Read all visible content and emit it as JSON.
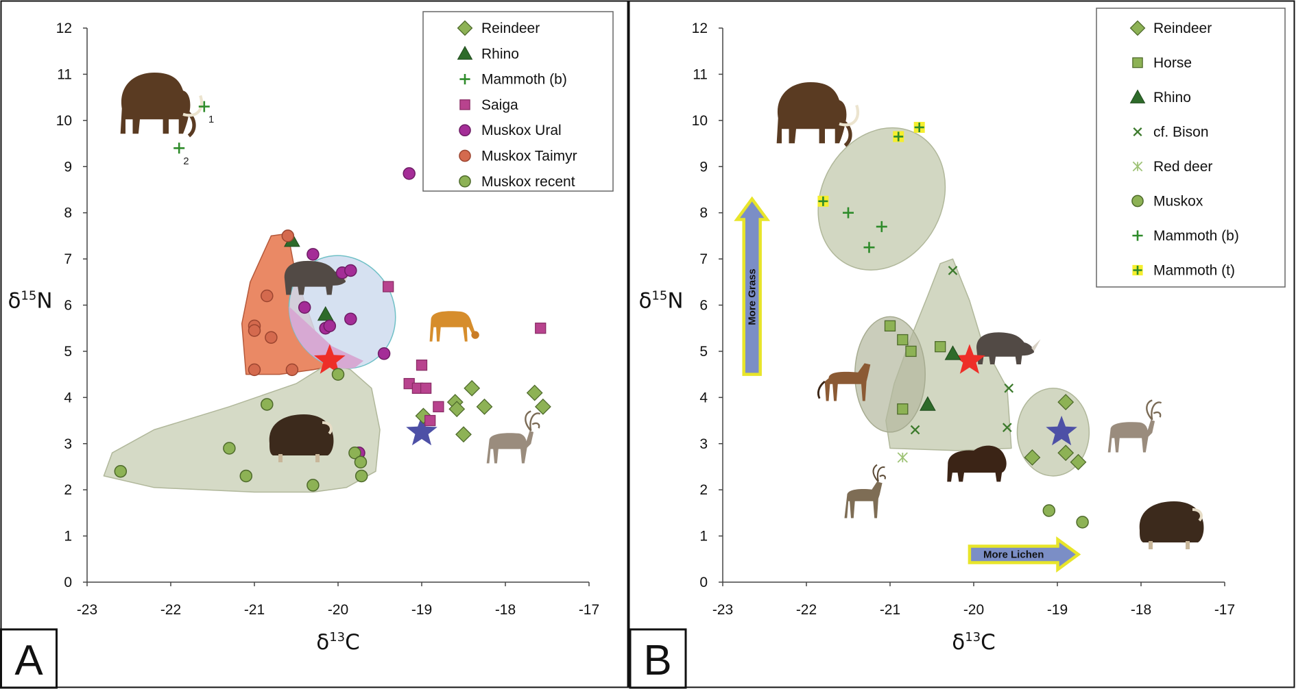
{
  "colors": {
    "reindeer": "#8DB255",
    "rhino": "#2E6B2A",
    "mammoth_b": "#2E8B2A",
    "saiga": "#B8438E",
    "muskox_ural": "#A42D97",
    "muskox_taimyr": "#D46A4E",
    "muskox_recent": "#8DB255",
    "horse": "#8DB255",
    "bison": "#3C7A2C",
    "red_deer": "#9EC276",
    "mammoth_t_bg": "#F5EE2E",
    "region_green": "#C7CDB3",
    "region_orange": "#E9835D",
    "region_blue": "#CFDCEE",
    "region_blue_stroke": "#6FC0C6",
    "region_pink": "#D7A9D3",
    "star_red": "#EE2E28",
    "star_blue": "#4D50A6",
    "arrow_fill": "#7B8EC6",
    "arrow_stroke": "#E8E52A"
  },
  "chart_data": [
    {
      "type": "scatter",
      "panel_label": "A",
      "xlabel": "δ13C",
      "ylabel": "δ15N",
      "xlim": [
        -23,
        -17
      ],
      "ylim": [
        0,
        12
      ],
      "x_ticks": [
        "-23",
        "-22",
        "-21",
        "-20",
        "-19",
        "-18",
        "-17"
      ],
      "y_ticks": [
        "0",
        "1",
        "2",
        "3",
        "4",
        "5",
        "6",
        "7",
        "8",
        "9",
        "10",
        "11",
        "12"
      ],
      "grid": false,
      "legend_placement": "top-right",
      "point_annotations": [
        {
          "text": "1",
          "x": -21.55,
          "y": 10.1
        },
        {
          "text": "2",
          "x": -21.85,
          "y": 9.2
        }
      ],
      "regions": [
        {
          "type": "muskox-taimyr-range",
          "points": [
            [
              -21.1,
              4.5
            ],
            [
              -20.7,
              4.5
            ],
            [
              -20.3,
              4.6
            ],
            [
              -20.0,
              4.7
            ],
            [
              -20.25,
              5.3
            ],
            [
              -20.5,
              6.6
            ],
            [
              -20.6,
              7.55
            ],
            [
              -20.8,
              7.5
            ],
            [
              -20.9,
              7.1
            ],
            [
              -21.05,
              6.5
            ],
            [
              -21.15,
              5.6
            ]
          ]
        },
        {
          "type": "muskox-ural-range",
          "ellipse": {
            "cx": -19.95,
            "cy": 5.85,
            "rx": 0.62,
            "ry": 1.25,
            "angle": -28
          }
        },
        {
          "type": "muskox-recent-range",
          "points": [
            [
              -22.8,
              2.3
            ],
            [
              -22.2,
              2.05
            ],
            [
              -21.0,
              1.95
            ],
            [
              -20.3,
              1.95
            ],
            [
              -19.9,
              2.05
            ],
            [
              -19.55,
              2.4
            ],
            [
              -19.5,
              3.3
            ],
            [
              -19.6,
              4.2
            ],
            [
              -19.85,
              4.6
            ],
            [
              -20.1,
              4.75
            ],
            [
              -20.5,
              4.3
            ],
            [
              -21.3,
              3.8
            ],
            [
              -22.2,
              3.3
            ],
            [
              -22.7,
              2.8
            ]
          ]
        }
      ],
      "stars": [
        {
          "name": "red",
          "x": -20.1,
          "y": 4.8
        },
        {
          "name": "blue",
          "x": -19.0,
          "y": 3.25
        }
      ],
      "series": [
        {
          "name": "Reindeer",
          "marker": "diamond",
          "x": [
            -18.6,
            -18.58,
            -18.4,
            -18.25,
            -18.5,
            -17.65,
            -17.55,
            -18.98
          ],
          "y": [
            3.9,
            3.75,
            4.2,
            3.8,
            3.2,
            4.1,
            3.8,
            3.6
          ]
        },
        {
          "name": "Rhino",
          "marker": "triangle",
          "x": [
            -20.55,
            -20.15
          ],
          "y": [
            7.4,
            5.8
          ]
        },
        {
          "name": "Mammoth (b)",
          "marker": "plus",
          "x": [
            -21.6,
            -21.9
          ],
          "y": [
            10.3,
            9.4
          ]
        },
        {
          "name": "Saiga",
          "marker": "square",
          "x": [
            -19.4,
            -19.0,
            -19.15,
            -19.05,
            -18.95,
            -18.8,
            -18.9,
            -17.58
          ],
          "y": [
            6.4,
            4.7,
            4.3,
            4.2,
            4.2,
            3.8,
            3.5,
            5.5
          ]
        },
        {
          "name": "Muskox Ural",
          "marker": "circle",
          "x": [
            -20.3,
            -19.95,
            -19.85,
            -19.85,
            -20.4,
            -20.15,
            -20.1,
            -19.45,
            -19.15,
            -19.75
          ],
          "y": [
            7.1,
            6.7,
            6.75,
            5.7,
            5.95,
            5.5,
            5.55,
            4.95,
            8.85,
            2.8
          ]
        },
        {
          "name": "Muskox Taimyr",
          "marker": "circle",
          "x": [
            -20.6,
            -20.85,
            -21.0,
            -21.0,
            -20.8,
            -21.0,
            -20.55
          ],
          "y": [
            7.5,
            6.2,
            5.55,
            5.45,
            5.3,
            4.6,
            4.6
          ]
        },
        {
          "name": "Muskox recent",
          "marker": "circle",
          "x": [
            -20.0,
            -20.85,
            -21.3,
            -22.6,
            -21.1,
            -20.3,
            -19.8,
            -19.73,
            -19.72
          ],
          "y": [
            4.5,
            3.85,
            2.9,
            2.4,
            2.3,
            2.1,
            2.8,
            2.6,
            2.3
          ]
        }
      ],
      "illustrations": [
        "mammoth",
        "woolly-rhino",
        "saiga",
        "muskox",
        "reindeer"
      ]
    },
    {
      "type": "scatter",
      "panel_label": "B",
      "xlabel": "δ13C",
      "ylabel": "δ15N",
      "xlim": [
        -23,
        -17
      ],
      "ylim": [
        0,
        12
      ],
      "x_ticks": [
        "-23",
        "-22",
        "-21",
        "-20",
        "-19",
        "-18",
        "-17"
      ],
      "y_ticks": [
        "0",
        "1",
        "2",
        "3",
        "4",
        "5",
        "6",
        "7",
        "8",
        "9",
        "10",
        "11",
        "12"
      ],
      "grid": false,
      "legend_placement": "top-right",
      "arrows": [
        {
          "text": "More Grass",
          "direction": "up",
          "x": -22.65,
          "y_from": 4.5,
          "y_to": 8.3
        },
        {
          "text": "More Lichen",
          "direction": "right",
          "y": 0.6,
          "x_from": -20.05,
          "x_to": -18.75
        }
      ],
      "regions": [
        {
          "type": "mammoth-range",
          "ellipse": {
            "cx": -21.1,
            "cy": 8.3,
            "rx": 0.72,
            "ry": 1.6,
            "angle": 28
          }
        },
        {
          "type": "grazer-range",
          "points": [
            [
              -21.0,
              2.9
            ],
            [
              -20.2,
              2.85
            ],
            [
              -19.55,
              2.9
            ],
            [
              -19.6,
              4.2
            ],
            [
              -19.9,
              5.2
            ],
            [
              -20.05,
              6.1
            ],
            [
              -20.25,
              7.0
            ],
            [
              -20.4,
              6.9
            ],
            [
              -20.55,
              6.2
            ],
            [
              -20.75,
              5.3
            ],
            [
              -20.95,
              4.3
            ],
            [
              -21.05,
              3.5
            ]
          ]
        },
        {
          "type": "horse-range",
          "ellipse": {
            "cx": -21.0,
            "cy": 4.5,
            "rx": 0.42,
            "ry": 1.25,
            "angle": 0
          }
        },
        {
          "type": "reindeer-range",
          "ellipse": {
            "cx": -19.05,
            "cy": 3.25,
            "rx": 0.43,
            "ry": 0.95,
            "angle": 0
          }
        }
      ],
      "stars": [
        {
          "name": "red",
          "x": -20.05,
          "y": 4.8
        },
        {
          "name": "blue",
          "x": -18.95,
          "y": 3.25
        }
      ],
      "series": [
        {
          "name": "Reindeer",
          "marker": "diamond",
          "x": [
            -18.9,
            -18.9,
            -18.75,
            -19.3
          ],
          "y": [
            3.9,
            2.8,
            2.6,
            2.7
          ]
        },
        {
          "name": "Horse",
          "marker": "square",
          "x": [
            -21.0,
            -20.85,
            -20.75,
            -20.4,
            -20.85
          ],
          "y": [
            5.55,
            5.25,
            5.0,
            5.1,
            3.75
          ]
        },
        {
          "name": "Rhino",
          "marker": "triangle",
          "x": [
            -20.25,
            -20.55
          ],
          "y": [
            4.95,
            3.85
          ]
        },
        {
          "name": "cf. Bison",
          "marker": "cross",
          "x": [
            -20.25,
            -19.58,
            -19.6,
            -20.7
          ],
          "y": [
            6.75,
            4.2,
            3.35,
            3.3
          ]
        },
        {
          "name": "Red deer",
          "marker": "asterisk",
          "x": [
            -20.85
          ],
          "y": [
            2.7
          ]
        },
        {
          "name": "Muskox",
          "marker": "circle",
          "x": [
            -19.1,
            -18.7
          ],
          "y": [
            1.55,
            1.3
          ]
        },
        {
          "name": "Mammoth (b)",
          "marker": "plus",
          "x": [
            -21.5,
            -21.1,
            -21.25
          ],
          "y": [
            8.0,
            7.7,
            7.25
          ]
        },
        {
          "name": "Mammoth (t)",
          "marker": "plus-box",
          "x": [
            -21.8,
            -20.9,
            -20.65
          ],
          "y": [
            8.25,
            9.65,
            9.85
          ]
        }
      ],
      "illustrations": [
        "mammoth",
        "horse",
        "woolly-rhino",
        "red-deer",
        "bison",
        "reindeer",
        "muskox"
      ]
    }
  ]
}
